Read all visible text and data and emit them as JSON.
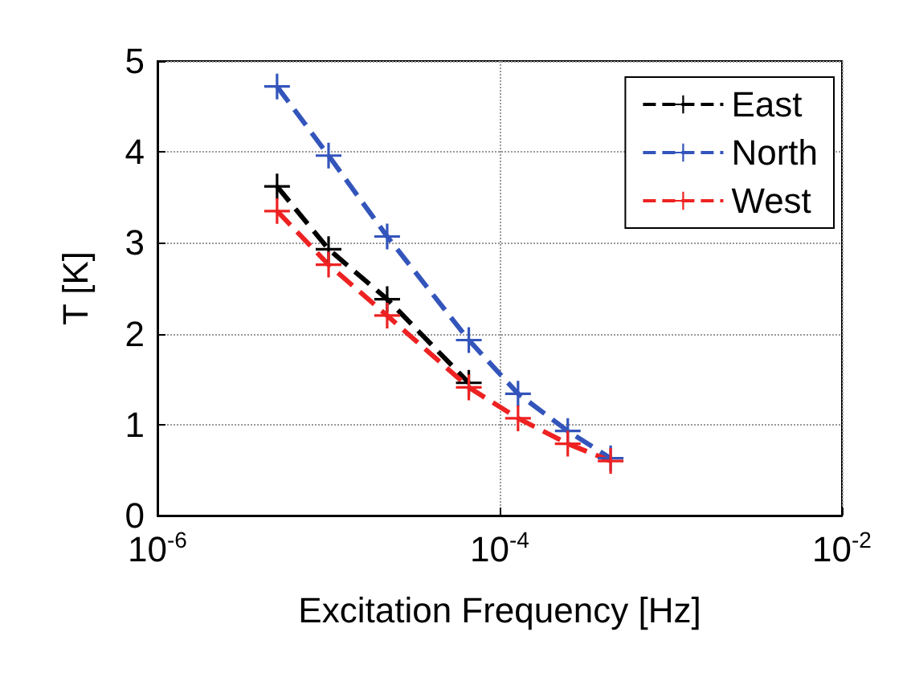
{
  "chart_data": {
    "type": "line",
    "xlabel": "Excitation Frequency [Hz]",
    "ylabel": "T [K]",
    "log": "x",
    "xlim": [
      1e-06,
      0.01
    ],
    "xticks": [
      {
        "value": 1e-06,
        "label": "10$^{-6}$"
      },
      {
        "value": 0.0001,
        "label": "10$^{-4}$"
      },
      {
        "value": 0.01,
        "label": "10$^{-2}$"
      }
    ],
    "ylim": [
      0,
      5
    ],
    "yticks": [
      0,
      1,
      2,
      3,
      4,
      5
    ],
    "grid": true,
    "legend": "top right",
    "marker": "cross",
    "line_style": "dashed",
    "x": [
      5e-06,
      1e-05,
      2.2e-05,
      6.6e-05,
      0.000128,
      0.00025,
      0.000445
    ],
    "series": [
      {
        "name": "East",
        "color": "#000000",
        "values": [
          3.62,
          2.93,
          2.38,
          1.46,
          null,
          null,
          null
        ]
      },
      {
        "name": "North",
        "color": "#3355bb",
        "values": [
          4.72,
          3.96,
          3.07,
          1.93,
          1.34,
          0.93,
          0.63
        ]
      },
      {
        "name": "West",
        "color": "#ee2222",
        "values": [
          3.35,
          2.76,
          2.2,
          1.41,
          1.07,
          0.79,
          0.6
        ]
      }
    ]
  }
}
